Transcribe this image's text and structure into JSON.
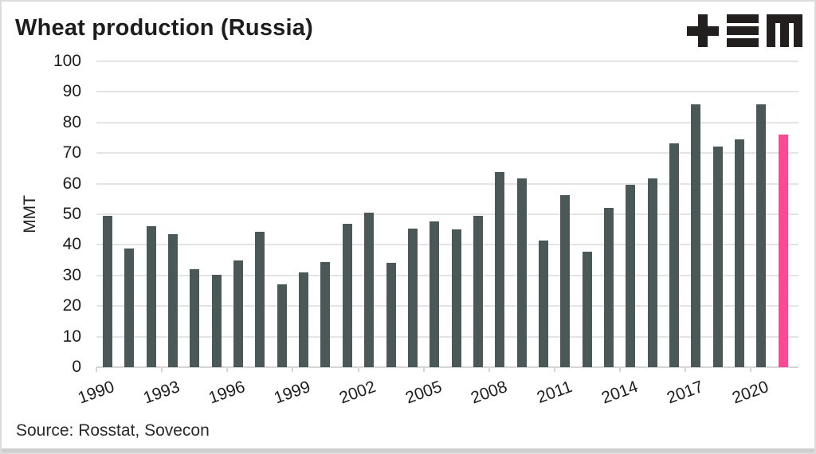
{
  "header": {
    "title": "Wheat production (Russia)"
  },
  "logo": {
    "glyphs": [
      "plus-glyph",
      "triple-bar-glyph",
      "m-glyph"
    ],
    "color": "#231f1f"
  },
  "chart_data": {
    "type": "bar",
    "title": "Wheat production (Russia)",
    "xlabel": "",
    "ylabel": "MMT",
    "categories": [
      "1990",
      "1991",
      "1992",
      "1993",
      "1994",
      "1995",
      "1996",
      "1997",
      "1998",
      "1999",
      "2000",
      "2001",
      "2002",
      "2003",
      "2004",
      "2005",
      "2006",
      "2007",
      "2008",
      "2009",
      "2010",
      "2011",
      "2012",
      "2013",
      "2014",
      "2015",
      "2016",
      "2017",
      "2018",
      "2019",
      "2020",
      "2021"
    ],
    "values": [
      49.6,
      38.9,
      46.2,
      43.5,
      32.1,
      30.1,
      34.9,
      44.3,
      27.0,
      31.0,
      34.5,
      47.0,
      50.6,
      34.1,
      45.4,
      47.6,
      45.0,
      49.4,
      63.8,
      61.7,
      41.5,
      56.2,
      37.7,
      52.1,
      59.7,
      61.8,
      73.3,
      85.9,
      72.1,
      74.5,
      85.9,
      76.0
    ],
    "ylim": [
      0,
      100
    ],
    "yticks": [
      0,
      10,
      20,
      30,
      40,
      50,
      60,
      70,
      80,
      90,
      100
    ],
    "xtick_labels": [
      "1990",
      "1993",
      "1996",
      "1999",
      "2002",
      "2005",
      "2008",
      "2011",
      "2014",
      "2017",
      "2020"
    ],
    "grid": "horizontal",
    "legend": "none",
    "highlight": {
      "category": "2021",
      "color": "#fc4994"
    }
  },
  "colors": {
    "bar": "#4a5957",
    "highlight": "#fc4994",
    "text": "#1d1d1d",
    "gridline": "#e4e4e4",
    "axis": "#d6d6d6"
  },
  "footer": {
    "source": "Source: Rosstat, Sovecon"
  }
}
